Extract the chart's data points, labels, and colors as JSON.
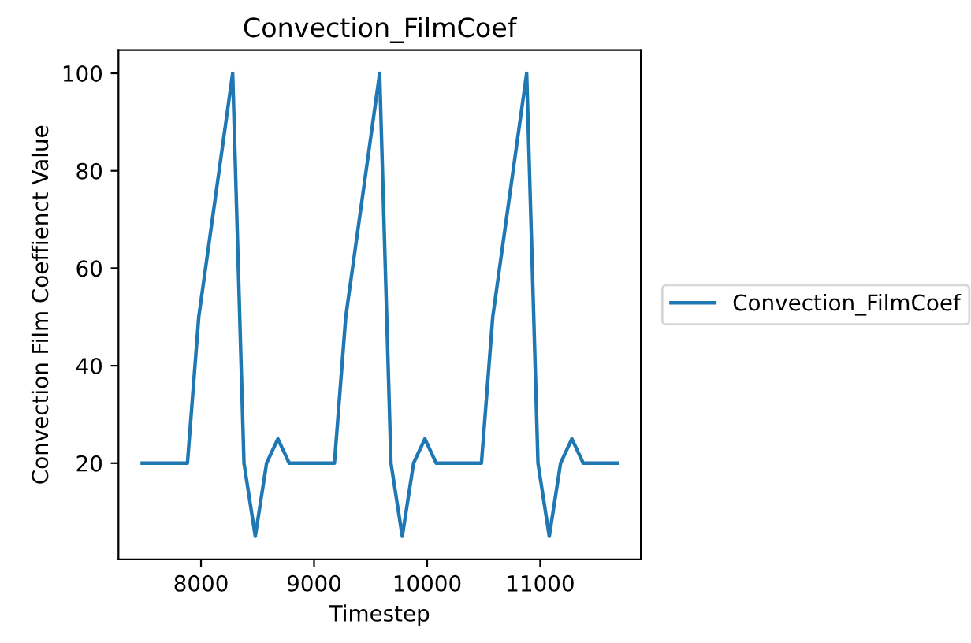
{
  "chart_data": {
    "type": "line",
    "title": "Convection_FilmCoef",
    "xlabel": "Timestep",
    "ylabel": "Convection Film Coeffienct Value",
    "series": [
      {
        "name": "Convection_FilmCoef",
        "color": "#1f77b4",
        "x": [
          7480,
          7880,
          7980,
          8280,
          8380,
          8480,
          8580,
          8680,
          8780,
          9180,
          9280,
          9580,
          9680,
          9780,
          9880,
          9980,
          10080,
          10480,
          10580,
          10880,
          10980,
          11080,
          11180,
          11280,
          11380,
          11680
        ],
        "values": [
          20,
          20,
          50,
          100,
          20,
          5,
          20,
          25,
          20,
          20,
          50,
          100,
          20,
          5,
          20,
          25,
          20,
          20,
          50,
          100,
          20,
          5,
          20,
          25,
          20,
          20
        ]
      }
    ],
    "xlim": [
      7270,
      11890
    ],
    "ylim": [
      0.25,
      104.75
    ],
    "xticks": [
      8000,
      9000,
      10000,
      11000
    ],
    "yticks": [
      20,
      40,
      60,
      80,
      100
    ],
    "legend": "right",
    "grid": false,
    "marker": "none",
    "line_style": "solid"
  }
}
